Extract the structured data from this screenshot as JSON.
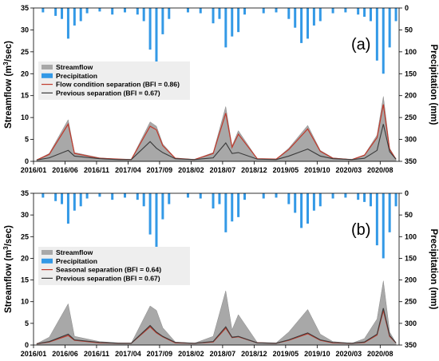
{
  "chart_data": [
    {
      "type": "area",
      "panel_label": "(a)",
      "xlabel": "",
      "ylabel": "Streamflow (m",
      "ylabel_sup": "3",
      "ylabel_tail": "/sec)",
      "ylabel_right": "Precipitation (mm)",
      "x_ticks": [
        "2016/01",
        "2016/06",
        "2016/11",
        "2017/04",
        "2017/09",
        "2018/02",
        "2018/07",
        "2018/12",
        "2019/05",
        "2019/10",
        "2020/03",
        "2020/08"
      ],
      "ylim": [
        0,
        35
      ],
      "y_ticks": [
        "0",
        "5",
        "10",
        "15",
        "20",
        "25",
        "30",
        "35"
      ],
      "y2lim_reversed": [
        0,
        350
      ],
      "y2_ticks": [
        "0",
        "50",
        "100",
        "150",
        "200",
        "250",
        "300",
        "350"
      ],
      "legend": [
        "Streamflow",
        "Precipitation",
        "Flow condition separation (BFI = 0.86)",
        "Previous separation (BFI = 0.67)"
      ],
      "colors": {
        "streamflow": "#a8a8a8",
        "precipitation": "#3399e6",
        "separation": "#c0392b",
        "previous": "#3a3a3a"
      },
      "series": [
        {
          "name": "Streamflow",
          "x": [
            "2016/01",
            "2016/03",
            "2016/06",
            "2016/07",
            "2016/11",
            "2017/02",
            "2017/04",
            "2017/07",
            "2017/08",
            "2017/09",
            "2017/11",
            "2018/02",
            "2018/05",
            "2018/07",
            "2018/08",
            "2018/09",
            "2018/12",
            "2019/03",
            "2019/05",
            "2019/08",
            "2019/10",
            "2019/12",
            "2020/03",
            "2020/05",
            "2020/07",
            "2020/08",
            "2020/09",
            "2020/10"
          ],
          "values": [
            0.3,
            1.8,
            9.5,
            2.0,
            0.8,
            0.5,
            0.4,
            9.0,
            8.0,
            4.0,
            0.7,
            0.4,
            2.0,
            12.5,
            3.5,
            7.0,
            0.6,
            0.5,
            3.0,
            8.2,
            2.5,
            0.8,
            0.4,
            1.5,
            6.0,
            14.8,
            3.0,
            0.5
          ]
        },
        {
          "name": "Flow condition separation (BFI = 0.86)",
          "x": [
            "2016/01",
            "2016/03",
            "2016/06",
            "2016/07",
            "2016/11",
            "2017/02",
            "2017/04",
            "2017/07",
            "2017/08",
            "2017/09",
            "2017/11",
            "2018/02",
            "2018/05",
            "2018/07",
            "2018/08",
            "2018/09",
            "2018/12",
            "2019/03",
            "2019/05",
            "2019/08",
            "2019/10",
            "2019/12",
            "2020/03",
            "2020/05",
            "2020/07",
            "2020/08",
            "2020/09",
            "2020/10"
          ],
          "values": [
            0.3,
            1.6,
            8.5,
            1.8,
            0.7,
            0.5,
            0.4,
            8.0,
            7.2,
            3.6,
            0.7,
            0.4,
            1.8,
            11.0,
            3.2,
            6.2,
            0.6,
            0.5,
            2.7,
            7.4,
            2.3,
            0.7,
            0.4,
            1.4,
            5.4,
            13.0,
            2.7,
            0.5
          ]
        },
        {
          "name": "Previous separation (BFI = 0.67)",
          "x": [
            "2016/01",
            "2016/03",
            "2016/06",
            "2016/07",
            "2016/11",
            "2017/02",
            "2017/04",
            "2017/07",
            "2017/08",
            "2017/09",
            "2017/11",
            "2018/02",
            "2018/05",
            "2018/07",
            "2018/08",
            "2018/09",
            "2018/12",
            "2019/03",
            "2019/05",
            "2019/08",
            "2019/10",
            "2019/12",
            "2020/03",
            "2020/05",
            "2020/07",
            "2020/08",
            "2020/09",
            "2020/10"
          ],
          "values": [
            0.3,
            0.8,
            2.5,
            1.2,
            0.6,
            0.4,
            0.4,
            4.5,
            3.0,
            2.0,
            0.6,
            0.4,
            0.8,
            4.2,
            1.8,
            2.0,
            0.5,
            0.4,
            1.2,
            2.8,
            1.2,
            0.6,
            0.4,
            0.7,
            2.5,
            8.5,
            2.2,
            0.5
          ]
        },
        {
          "name": "Precipitation",
          "x": [
            "2016/02",
            "2016/04",
            "2016/05",
            "2016/06",
            "2016/07",
            "2016/08",
            "2016/09",
            "2016/11",
            "2017/01",
            "2017/03",
            "2017/05",
            "2017/06",
            "2017/07",
            "2017/08",
            "2017/09",
            "2017/10",
            "2018/01",
            "2018/03",
            "2018/05",
            "2018/06",
            "2018/07",
            "2018/08",
            "2018/09",
            "2018/10",
            "2019/01",
            "2019/03",
            "2019/05",
            "2019/06",
            "2019/07",
            "2019/08",
            "2019/09",
            "2019/10",
            "2019/12",
            "2020/02",
            "2020/04",
            "2020/05",
            "2020/06",
            "2020/07",
            "2020/08",
            "2020/09",
            "2020/10"
          ],
          "values": [
            10,
            18,
            25,
            70,
            40,
            30,
            12,
            8,
            15,
            10,
            15,
            30,
            95,
            150,
            60,
            25,
            10,
            12,
            35,
            25,
            90,
            65,
            55,
            15,
            12,
            10,
            25,
            45,
            80,
            70,
            40,
            30,
            12,
            10,
            15,
            20,
            30,
            120,
            150,
            90,
            30
          ]
        }
      ]
    },
    {
      "type": "area",
      "panel_label": "(b)",
      "xlabel": "",
      "ylabel": "Streamflow (m",
      "ylabel_sup": "3",
      "ylabel_tail": "/sec)",
      "ylabel_right": "Precipitation (mm)",
      "x_ticks": [
        "2016/01",
        "2016/06",
        "2016/11",
        "2017/04",
        "2017/09",
        "2018/02",
        "2018/07",
        "2018/12",
        "2019/05",
        "2019/10",
        "2020/03",
        "2020/08"
      ],
      "ylim": [
        0,
        35
      ],
      "y_ticks": [
        "0",
        "5",
        "10",
        "15",
        "20",
        "25",
        "30",
        "35"
      ],
      "y2lim_reversed": [
        0,
        350
      ],
      "y2_ticks": [
        "0",
        "50",
        "100",
        "150",
        "200",
        "250",
        "300",
        "350"
      ],
      "legend": [
        "Streamflow",
        "Precipitation",
        "Seasonal separation (BFI = 0.64)",
        "Previous separation (BFI = 0.67)"
      ],
      "colors": {
        "streamflow": "#a8a8a8",
        "precipitation": "#3399e6",
        "separation": "#c0392b",
        "previous": "#3a3a3a"
      },
      "series": [
        {
          "name": "Streamflow",
          "x": [
            "2016/01",
            "2016/03",
            "2016/06",
            "2016/07",
            "2016/11",
            "2017/02",
            "2017/04",
            "2017/07",
            "2017/08",
            "2017/09",
            "2017/11",
            "2018/02",
            "2018/05",
            "2018/07",
            "2018/08",
            "2018/09",
            "2018/12",
            "2019/03",
            "2019/05",
            "2019/08",
            "2019/10",
            "2019/12",
            "2020/03",
            "2020/05",
            "2020/07",
            "2020/08",
            "2020/09",
            "2020/10"
          ],
          "values": [
            0.3,
            1.8,
            9.5,
            2.0,
            0.8,
            0.5,
            0.4,
            9.0,
            8.0,
            4.0,
            0.7,
            0.4,
            2.0,
            12.5,
            3.5,
            7.0,
            0.6,
            0.5,
            3.0,
            8.2,
            2.5,
            0.8,
            0.4,
            1.5,
            6.0,
            14.8,
            3.0,
            0.5
          ]
        },
        {
          "name": "Seasonal separation (BFI = 0.64)",
          "x": [
            "2016/01",
            "2016/03",
            "2016/06",
            "2016/07",
            "2016/11",
            "2017/02",
            "2017/04",
            "2017/07",
            "2017/08",
            "2017/09",
            "2017/11",
            "2018/02",
            "2018/05",
            "2018/07",
            "2018/08",
            "2018/09",
            "2018/12",
            "2019/03",
            "2019/05",
            "2019/08",
            "2019/10",
            "2019/12",
            "2020/03",
            "2020/05",
            "2020/07",
            "2020/08",
            "2020/09",
            "2020/10"
          ],
          "values": [
            0.3,
            0.7,
            2.2,
            1.1,
            0.5,
            0.4,
            0.4,
            4.2,
            2.8,
            1.9,
            0.5,
            0.4,
            0.7,
            3.9,
            1.7,
            1.9,
            0.5,
            0.4,
            1.1,
            2.6,
            1.1,
            0.5,
            0.4,
            0.6,
            2.3,
            8.0,
            2.0,
            0.5
          ]
        },
        {
          "name": "Previous separation (BFI = 0.67)",
          "x": [
            "2016/01",
            "2016/03",
            "2016/06",
            "2016/07",
            "2016/11",
            "2017/02",
            "2017/04",
            "2017/07",
            "2017/08",
            "2017/09",
            "2017/11",
            "2018/02",
            "2018/05",
            "2018/07",
            "2018/08",
            "2018/09",
            "2018/12",
            "2019/03",
            "2019/05",
            "2019/08",
            "2019/10",
            "2019/12",
            "2020/03",
            "2020/05",
            "2020/07",
            "2020/08",
            "2020/09",
            "2020/10"
          ],
          "values": [
            0.3,
            0.8,
            2.5,
            1.2,
            0.6,
            0.4,
            0.4,
            4.5,
            3.0,
            2.0,
            0.6,
            0.4,
            0.8,
            4.2,
            1.8,
            2.0,
            0.5,
            0.4,
            1.2,
            2.8,
            1.2,
            0.6,
            0.4,
            0.7,
            2.5,
            8.5,
            2.2,
            0.5
          ]
        },
        {
          "name": "Precipitation",
          "x": [
            "2016/02",
            "2016/04",
            "2016/05",
            "2016/06",
            "2016/07",
            "2016/08",
            "2016/09",
            "2016/11",
            "2017/01",
            "2017/03",
            "2017/05",
            "2017/06",
            "2017/07",
            "2017/08",
            "2017/09",
            "2017/10",
            "2018/01",
            "2018/03",
            "2018/05",
            "2018/06",
            "2018/07",
            "2018/08",
            "2018/09",
            "2018/10",
            "2019/01",
            "2019/03",
            "2019/05",
            "2019/06",
            "2019/07",
            "2019/08",
            "2019/09",
            "2019/10",
            "2019/12",
            "2020/02",
            "2020/04",
            "2020/05",
            "2020/06",
            "2020/07",
            "2020/08",
            "2020/09",
            "2020/10"
          ],
          "values": [
            10,
            18,
            25,
            70,
            40,
            30,
            12,
            8,
            15,
            10,
            15,
            30,
            95,
            150,
            60,
            25,
            10,
            12,
            35,
            25,
            90,
            65,
            55,
            15,
            12,
            10,
            25,
            45,
            80,
            70,
            40,
            30,
            12,
            10,
            15,
            20,
            30,
            120,
            150,
            90,
            30
          ]
        }
      ]
    }
  ]
}
